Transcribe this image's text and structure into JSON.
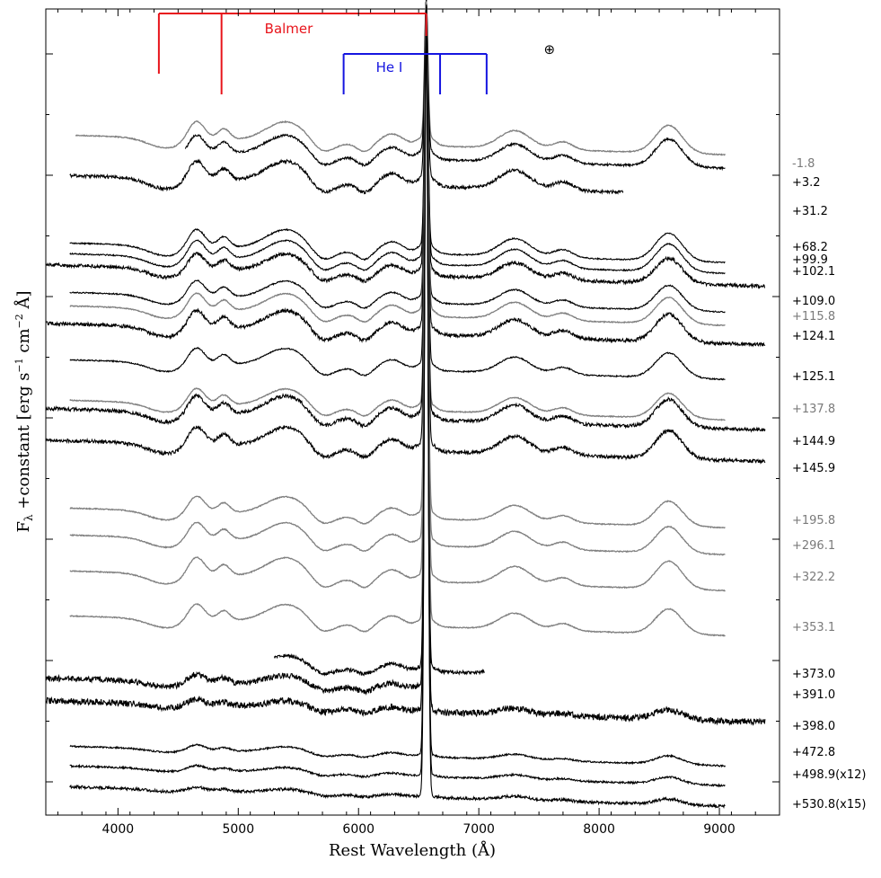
{
  "chart_data": {
    "type": "line",
    "title": "",
    "xlabel": "Rest Wavelength (Å)",
    "ylabel_text": "F",
    "ylabel_sub": "λ",
    "ylabel_rest": " +constant [erg s",
    "ylabel_sup1": "−1",
    "ylabel_mid": " cm",
    "ylabel_sup2": "−2",
    "ylabel_end": " Å]",
    "xlim": [
      3400,
      9500
    ],
    "xticks": [
      4000,
      5000,
      6000,
      7000,
      8000,
      9000
    ],
    "xtick_labels": [
      "4000",
      "5000",
      "6000",
      "7000",
      "8000",
      "9000"
    ],
    "grid": false,
    "annotations": {
      "balmer_label": "Balmer",
      "balmer_lines": [
        4340,
        4861,
        6563
      ],
      "balmer_color": "#e8141b",
      "hei_label": "He I",
      "hei_lines": [
        5876,
        6678,
        7065
      ],
      "hei_color": "#1515e0",
      "telluric_symbol": "⊕",
      "telluric_wavelength": 7600
    },
    "series": [
      {
        "name": "-1.8",
        "color": "#808080",
        "xrange": [
          3650,
          9050
        ],
        "noise": 0.15
      },
      {
        "name": "+3.2",
        "color": "#000000",
        "xrange": [
          4560,
          9050
        ],
        "noise": 0.35
      },
      {
        "name": "+31.2",
        "color": "#000000",
        "xrange": [
          3600,
          8200
        ],
        "noise": 0.5
      },
      {
        "name": "+68.2",
        "color": "#000000",
        "xrange": [
          3600,
          9050
        ],
        "noise": 0.2
      },
      {
        "name": "+99.9",
        "color": "#000000",
        "xrange": [
          3600,
          9050
        ],
        "noise": 0.2
      },
      {
        "name": "+102.1",
        "color": "#000000",
        "xrange": [
          3400,
          9380
        ],
        "noise": 0.55
      },
      {
        "name": "+109.0",
        "color": "#000000",
        "xrange": [
          3600,
          9050
        ],
        "noise": 0.2
      },
      {
        "name": "+115.8",
        "color": "#808080",
        "xrange": [
          3600,
          9050
        ],
        "noise": 0.15
      },
      {
        "name": "+124.1",
        "color": "#000000",
        "xrange": [
          3400,
          9380
        ],
        "noise": 0.55
      },
      {
        "name": "+125.1",
        "color": "#000000",
        "xrange": [
          3600,
          9050
        ],
        "noise": 0.2
      },
      {
        "name": "+137.8",
        "color": "#808080",
        "xrange": [
          3600,
          9050
        ],
        "noise": 0.15
      },
      {
        "name": "+144.9",
        "color": "#000000",
        "xrange": [
          3400,
          9380
        ],
        "noise": 0.55
      },
      {
        "name": "+145.9",
        "color": "#000000",
        "xrange": [
          3400,
          9380
        ],
        "noise": 0.55
      },
      {
        "name": "+195.8",
        "color": "#808080",
        "xrange": [
          3600,
          9050
        ],
        "noise": 0.15
      },
      {
        "name": "+296.1",
        "color": "#808080",
        "xrange": [
          3600,
          9050
        ],
        "noise": 0.15
      },
      {
        "name": "+322.2",
        "color": "#808080",
        "xrange": [
          3600,
          9050
        ],
        "noise": 0.15
      },
      {
        "name": "+353.1",
        "color": "#808080",
        "xrange": [
          3600,
          9050
        ],
        "noise": 0.15
      },
      {
        "name": "+373.0",
        "color": "#000000",
        "xrange": [
          5300,
          7050
        ],
        "noise": 0.6
      },
      {
        "name": "+391.0",
        "color": "#000000",
        "xrange": [
          3400,
          6600
        ],
        "noise": 0.9
      },
      {
        "name": "+398.0",
        "color": "#000000",
        "xrange": [
          3400,
          9380
        ],
        "noise": 1.0
      },
      {
        "name": "+472.8",
        "color": "#000000",
        "xrange": [
          3600,
          9050
        ],
        "noise": 0.25
      },
      {
        "name": "+498.9(x12)",
        "color": "#000000",
        "xrange": [
          3600,
          9050
        ],
        "noise": 0.3
      },
      {
        "name": "+530.8(x15)",
        "color": "#000000",
        "xrange": [
          3600,
          9050
        ],
        "noise": 0.45
      }
    ]
  }
}
